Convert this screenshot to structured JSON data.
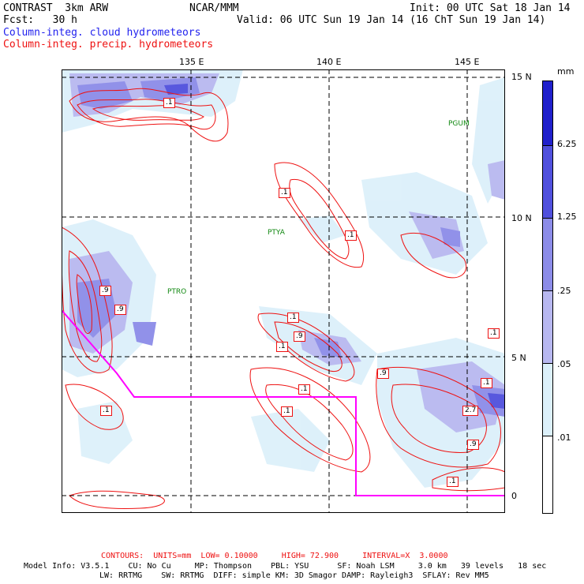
{
  "header": {
    "model_name": "CONTRAST  3km ARW",
    "org": "NCAR/MMM",
    "init": "Init: 00 UTC Sat 18 Jan 14",
    "fcst": "Fcst:   30 h",
    "valid": "Valid: 06 UTC Sun 19 Jan 14 (16 ChT Sun 19 Jan 14)",
    "field1": "Column-integ. cloud hydrometeors",
    "field2": "Column-integ. precip. hydrometeors"
  },
  "map": {
    "longitude_labels": [
      "135 E",
      "140 E",
      "145 E"
    ],
    "latitude_labels": [
      "15 N",
      "10 N",
      "5 N",
      "0"
    ],
    "stations": [
      "PGUM",
      "PTYA",
      "PTRO"
    ],
    "contour_labels": [
      ".1",
      ".1",
      ".1",
      ".9",
      ".9",
      ".1",
      ".1",
      ".9",
      ".1",
      ".9",
      ".1",
      ".1",
      ".1",
      "2.7",
      ".9",
      ".1",
      ".1",
      ".1",
      ".1"
    ],
    "colors": {
      "boundary": "#ff00ff",
      "contour": "#ee1111",
      "grid": "#000000",
      "station": "#118811"
    }
  },
  "colorbar": {
    "unit": "mm",
    "levels": [
      "6.25",
      "1.25",
      ".25",
      ".05",
      ".01"
    ],
    "colors": [
      "#2020cc",
      "#5050dd",
      "#8c8ce8",
      "#b8b8f0",
      "#dcf0fa",
      "#ffffff"
    ]
  },
  "footer": {
    "contours": "CONTOURS:  UNITS=mm  LOW= 0.10000     HIGH= 72.900     INTERVAL=X  3.0000",
    "model_info1": "Model Info: V3.5.1    CU: No Cu     MP: Thompson    PBL: YSU      SF: Noah LSM     3.0 km   39 levels   18 sec",
    "model_info2": "LW: RRTMG    SW: RRTMG  DIFF: simple KM: 3D Smagor DAMP: Rayleigh3  SFLAY: Rev MM5"
  }
}
